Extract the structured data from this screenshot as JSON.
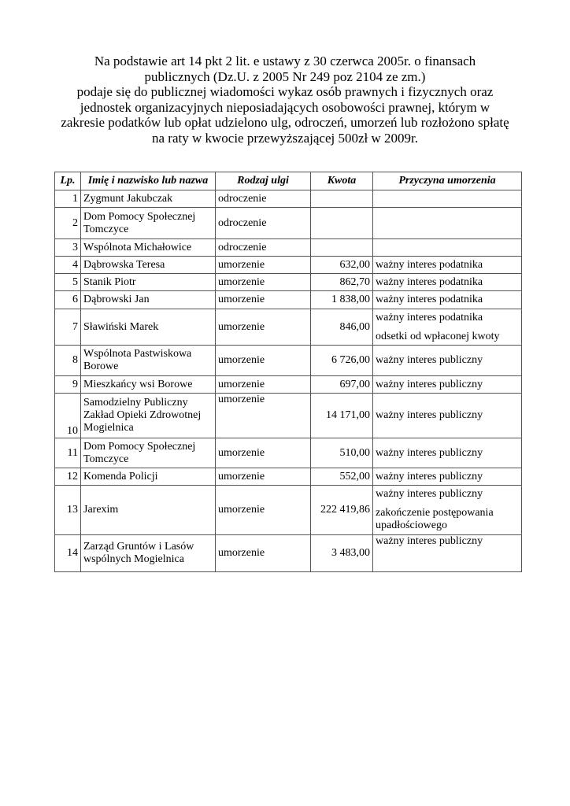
{
  "intro_lines": [
    "Na podstawie art 14 pkt 2 lit. e   ustawy z 30 czerwca 2005r. o  finansach",
    "publicznych (Dz.U. z 2005 Nr 249 poz 2104 ze zm.)",
    "podaje się do publicznej wiadomości wykaz osób prawnych i fizycznych  oraz",
    "jednostek organizacyjnych nieposiadających  osobowości prawnej, którym w",
    "zakresie podatków lub opłat udzielono ulg, odroczeń, umorzeń lub rozłożono spłatę",
    "na raty w kwocie przewyższającej 500zł w 2009r."
  ],
  "table": {
    "headers": [
      "Lp.",
      "Imię i nazwisko lub nazwa",
      "Rodzaj ulgi",
      "Kwota",
      "Przyczyna umorzenia"
    ],
    "rows": [
      {
        "lp": "1",
        "name": "Zygmunt Jakubczak",
        "type": "odroczenie",
        "amount": "",
        "reason": []
      },
      {
        "lp": "2",
        "name": "Dom Pomocy Społecznej Tomczyce",
        "type": "odroczenie",
        "amount": "",
        "reason": []
      },
      {
        "lp": "3",
        "name": "Wspólnota Michałowice",
        "type": "odroczenie",
        "amount": "",
        "reason": []
      },
      {
        "lp": "4",
        "name": "Dąbrowska Teresa",
        "type": "umorzenie",
        "amount": "632,00",
        "reason": [
          "ważny interes podatnika"
        ]
      },
      {
        "lp": "5",
        "name": "Stanik Piotr",
        "type": "umorzenie",
        "amount": "862,70",
        "reason": [
          "ważny interes podatnika"
        ]
      },
      {
        "lp": "6",
        "name": "Dąbrowski Jan",
        "type": "umorzenie",
        "amount": "1 838,00",
        "reason": [
          "ważny interes podatnika"
        ]
      },
      {
        "lp": "7",
        "name": "Sławiński Marek",
        "type": "umorzenie",
        "amount": "846,00",
        "reason": [
          "ważny interes podatnika",
          "odsetki od wpłaconej kwoty"
        ]
      },
      {
        "lp": "8",
        "name": "Wspólnota Pastwiskowa Borowe",
        "type": "umorzenie",
        "amount": "6 726,00",
        "reason": [
          "ważny interes publiczny"
        ]
      },
      {
        "lp": "9",
        "name": "Mieszkańcy wsi Borowe",
        "type": "umorzenie",
        "amount": "697,00",
        "reason": [
          "ważny interes publiczny"
        ]
      },
      {
        "lp": "10",
        "name": "Samodzielny Publiczny Zakład Opieki Zdrowotnej Mogielnica",
        "type": "umorzenie",
        "amount": "14 171,00",
        "reason": [
          "ważny interes publiczny"
        ]
      },
      {
        "lp": "11",
        "name": "Dom Pomocy Społecznej Tomczyce",
        "type": "umorzenie",
        "amount": "510,00",
        "reason": [
          "ważny interes publiczny"
        ]
      },
      {
        "lp": "12",
        "name": "Komenda Policji",
        "type": "umorzenie",
        "amount": "552,00",
        "reason": [
          "ważny interes publiczny"
        ]
      },
      {
        "lp": "13",
        "name": "Jarexim",
        "type": "umorzenie",
        "amount": "222 419,86",
        "reason": [
          "ważny interes publiczny",
          "zakończenie postępowania upadłościowego"
        ]
      },
      {
        "lp": "14",
        "name": "Zarząd Gruntów i Lasów wspólnych Mogielnica",
        "type": "umorzenie",
        "amount": "3 483,00",
        "reason": [
          "ważny interes publiczny"
        ]
      }
    ]
  }
}
